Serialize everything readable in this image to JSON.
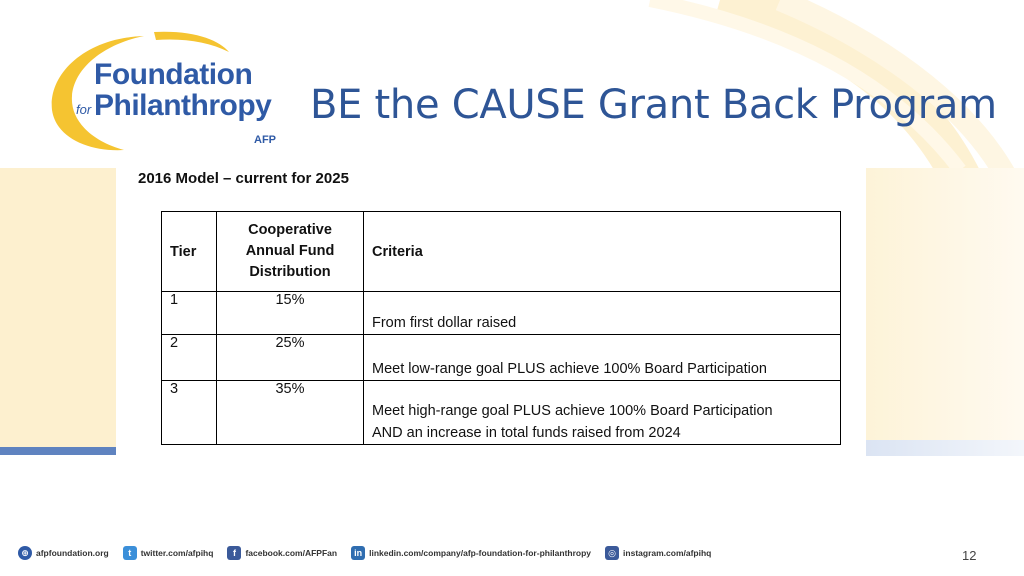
{
  "logo": {
    "line1": "Foundation",
    "for": "for",
    "line2": "Philanthropy",
    "tag": "AFP"
  },
  "title": "BE the CAUSE Grant Back Program",
  "subtitle": "2016 Model – current for 2025",
  "table": {
    "headers": {
      "tier": "Tier",
      "distribution_line1": "Cooperative",
      "distribution_line2": "Annual Fund",
      "distribution_line3": "Distribution",
      "criteria": "Criteria"
    },
    "rows": [
      {
        "tier": "1",
        "distribution": "15%",
        "criteria_line1": "From first dollar raised",
        "criteria_line2": ""
      },
      {
        "tier": "2",
        "distribution": "25%",
        "criteria_line1": "Meet low-range goal PLUS achieve 100% Board Participation",
        "criteria_line2": ""
      },
      {
        "tier": "3",
        "distribution": "35%",
        "criteria_line1": "Meet high-range goal PLUS achieve 100% Board Participation",
        "criteria_line2": "AND an increase in total funds raised from 2024"
      }
    ]
  },
  "footer": {
    "website": "afpfoundation.org",
    "twitter": "twitter.com/afpihq",
    "facebook": "facebook.com/AFPFan",
    "linkedin": "linkedin.com/company/afp-foundation-for-philanthropy",
    "instagram": "instagram.com/afpihq"
  },
  "page_number": "12",
  "colors": {
    "brand_blue": "#2f5aa6",
    "brand_gold": "#f5c431",
    "title_blue": "#2e5596"
  }
}
